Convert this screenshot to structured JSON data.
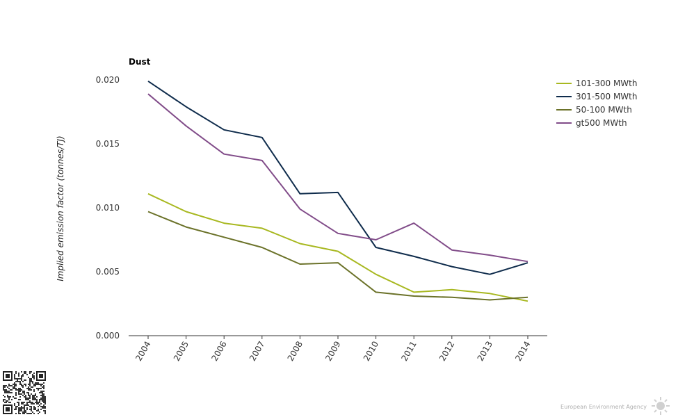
{
  "chart_data": {
    "type": "line",
    "title": "Dust",
    "xlabel": "",
    "ylabel": "Implied emission factor (tonnes/TJ)",
    "x": [
      "2004",
      "2005",
      "2006",
      "2007",
      "2008",
      "2009",
      "2010",
      "2011",
      "2012",
      "2013",
      "2014"
    ],
    "yticks": [
      "0.000",
      "0.005",
      "0.010",
      "0.015",
      "0.020"
    ],
    "ylim": [
      0,
      0.02
    ],
    "grid": false,
    "legend_position": "right",
    "series": [
      {
        "name": "101-300 MWth",
        "color": "#a8b820",
        "values": [
          0.0111,
          0.0097,
          0.0088,
          0.0084,
          0.0072,
          0.0066,
          0.0048,
          0.0034,
          0.0036,
          0.0033,
          0.0027
        ]
      },
      {
        "name": "301-500 MWth",
        "color": "#0f2c4c",
        "values": [
          0.0199,
          0.0179,
          0.0161,
          0.0155,
          0.0111,
          0.0112,
          0.0069,
          0.0062,
          0.0054,
          0.0048,
          0.0057
        ]
      },
      {
        "name": "50-100 MWth",
        "color": "#6b7229",
        "values": [
          0.0097,
          0.0085,
          0.0077,
          0.0069,
          0.0056,
          0.0057,
          0.0034,
          0.0031,
          0.003,
          0.0028,
          0.003
        ]
      },
      {
        "name": "gt500 MWth",
        "color": "#814c89",
        "values": [
          0.0189,
          0.0164,
          0.0142,
          0.0137,
          0.0099,
          0.008,
          0.0075,
          0.0088,
          0.0067,
          0.0063,
          0.0058
        ]
      }
    ]
  },
  "footer": {
    "attribution": "European Environment Agency"
  }
}
